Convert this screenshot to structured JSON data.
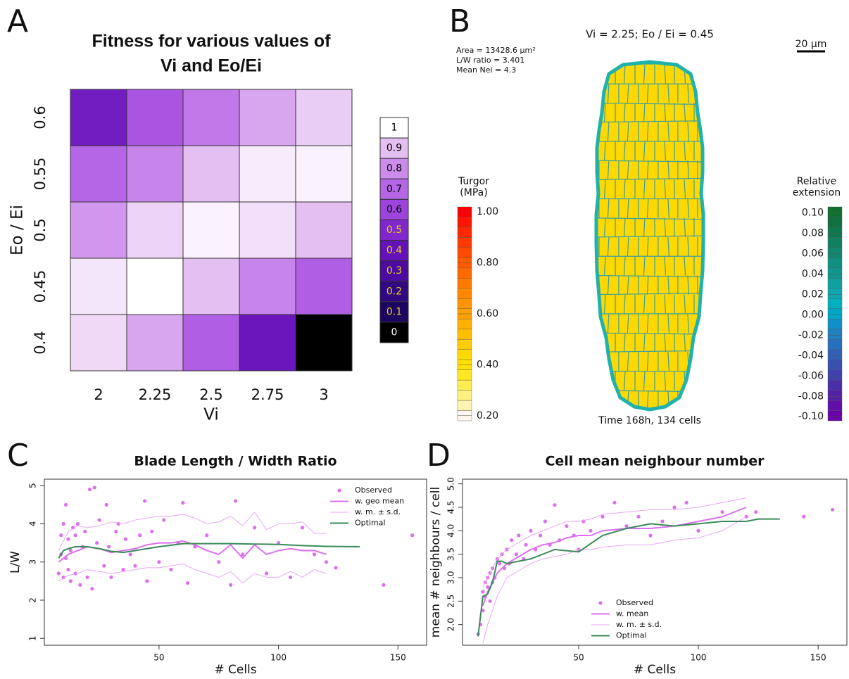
{
  "chart_data": [
    {
      "type": "heatmap",
      "panel_label": "A",
      "title": [
        "Fitness for various values of",
        "Vi and Eo/Ei"
      ],
      "xlabel": "Vi",
      "ylabel": "Eo / Ei",
      "categories": [
        "2",
        "2.25",
        "2.5",
        "2.75",
        "3"
      ],
      "y_categories": [
        "0.4",
        "0.45",
        "0.5",
        "0.55",
        "0.6"
      ],
      "values": [
        [
          0.94,
          0.85,
          0.68,
          0.42,
          0.0
        ],
        [
          0.96,
          1.0,
          0.9,
          0.78,
          0.68
        ],
        [
          0.82,
          0.93,
          0.98,
          0.95,
          0.9
        ],
        [
          0.7,
          0.78,
          0.9,
          0.97,
          0.98
        ],
        [
          0.45,
          0.65,
          0.75,
          0.85,
          0.92
        ]
      ],
      "legend_levels": [
        1,
        0.9,
        0.8,
        0.7,
        0.6,
        0.5,
        0.4,
        0.3,
        0.2,
        0.1,
        0
      ],
      "legend_colors": [
        "#ffffff",
        "#e4c0f2",
        "#cc8cec",
        "#b566e6",
        "#9c44dc",
        "#8028cc",
        "#6412b8",
        "#4c0aa0",
        "#320882",
        "#1c0560",
        "#000000"
      ],
      "legend_text_colors": [
        "#000000",
        "#000000",
        "#000000",
        "#000000",
        "#000000",
        "#e8d020",
        "#e8d020",
        "#e8d020",
        "#e8d020",
        "#e8d020",
        "#ffffff"
      ]
    },
    {
      "type": "image",
      "panel_label": "B",
      "title": "Vi = 2.25; Eo / Ei = 0.45",
      "info": [
        "Area = 13428.6 µm²",
        "L/W ratio = 3.401",
        "Mean Nei = 4.3"
      ],
      "scale_bar": "20 µm",
      "caption": "Time 168h, 134 cells",
      "colorbars": [
        {
          "title": [
            "Turgor",
            "(MPa)"
          ],
          "lim": [
            0.18,
            1.02
          ],
          "ticks": [
            {
              "value": 1,
              "label": "1.00"
            },
            {
              "value": 0.8,
              "label": "0.80"
            },
            {
              "value": 0.6,
              "label": "0.60"
            },
            {
              "value": 0.4,
              "label": "0.40"
            },
            {
              "value": 0.2,
              "label": "0.20"
            }
          ],
          "colors": [
            "#fff8f0",
            "#fff5b0",
            "#fff080",
            "#ffec50",
            "#ffe820",
            "#ffe000",
            "#ffd800",
            "#ffcc00",
            "#ffbf00",
            "#ffb000",
            "#ffa000",
            "#ff9400",
            "#ff8800",
            "#ff7a00",
            "#ff6a00",
            "#ff5a00",
            "#ff4a00",
            "#ff3a00",
            "#ff2800",
            "#ff1400",
            "#ff0000"
          ]
        },
        {
          "title": [
            "Relative",
            "extension"
          ],
          "lim": [
            -0.104,
            0.106
          ],
          "ticks": [
            {
              "value": 0.1,
              "label": "0.10"
            },
            {
              "value": 0.08,
              "label": "0.08"
            },
            {
              "value": 0.06,
              "label": "0.06"
            },
            {
              "value": 0.04,
              "label": "0.04"
            },
            {
              "value": 0.02,
              "label": "0.02"
            },
            {
              "value": 0,
              "label": "0.00"
            },
            {
              "value": -0.02,
              "label": "-0.02"
            },
            {
              "value": -0.04,
              "label": "-0.04"
            },
            {
              "value": -0.06,
              "label": "-0.06"
            },
            {
              "value": -0.08,
              "label": "-0.08"
            },
            {
              "value": -0.1,
              "label": "-0.10"
            }
          ],
          "colors": [
            "#6a00a8",
            "#6010a8",
            "#5520a8",
            "#4a30a8",
            "#4040b0",
            "#3850b0",
            "#3060b8",
            "#2870c0",
            "#2080c0",
            "#1090c8",
            "#00a8c8",
            "#00b0c0",
            "#10a8b0",
            "#10a0a0",
            "#109890",
            "#109080",
            "#108870",
            "#108060",
            "#107850",
            "#107040",
            "#107030"
          ]
        }
      ]
    },
    {
      "type": "scatter",
      "panel_label": "C",
      "title": "Blade Length / Width Ratio",
      "xlabel": "# Cells",
      "ylabel": "L/W",
      "xlim": [
        2,
        162
      ],
      "ylim": [
        0.82,
        5.17
      ],
      "xticks": [
        50,
        100,
        150
      ],
      "yticks": [
        1,
        2,
        3,
        4,
        5
      ],
      "legend": "top-right",
      "series": [
        {
          "name": "Observed",
          "style": "points",
          "color": "#dc6ff0",
          "x": [
            8,
            9,
            9,
            10,
            10,
            11,
            11,
            12,
            12,
            13,
            13,
            14,
            15,
            15,
            16,
            17,
            18,
            19,
            20,
            21,
            22,
            23,
            24,
            25,
            27,
            28,
            29,
            30,
            32,
            33,
            35,
            36,
            38,
            40,
            42,
            44,
            45,
            47,
            50,
            52,
            55,
            58,
            60,
            62,
            65,
            70,
            75,
            80,
            82,
            85,
            90,
            95,
            100,
            105,
            110,
            115,
            120,
            124,
            144,
            156
          ],
          "values": [
            2.7,
            3.2,
            3.7,
            2.6,
            4.0,
            3.1,
            4.5,
            2.8,
            3.6,
            3.3,
            2.5,
            3.9,
            2.7,
            3.7,
            4.0,
            2.4,
            3.4,
            3.8,
            2.6,
            4.9,
            2.3,
            4.95,
            3.5,
            4.1,
            2.9,
            4.5,
            3.4,
            2.6,
            3.8,
            4.0,
            2.8,
            3.6,
            3.2,
            2.9,
            3.7,
            4.6,
            2.5,
            3.8,
            3.0,
            4.1,
            2.8,
            3.5,
            4.55,
            2.45,
            3.4,
            3.7,
            3.0,
            2.4,
            4.6,
            3.2,
            3.9,
            2.7,
            3.5,
            2.6,
            3.9,
            3.2,
            3.0,
            2.85,
            2.4,
            3.7
          ]
        },
        {
          "name": "w. geo mean",
          "style": "line",
          "width": 2,
          "color": "#dc6ff0",
          "x": [
            8,
            12,
            16,
            20,
            25,
            30,
            35,
            40,
            45,
            50,
            55,
            60,
            65,
            70,
            75,
            80,
            85,
            90,
            95,
            100,
            105,
            110,
            115,
            120
          ],
          "values": [
            3.0,
            3.2,
            3.3,
            3.4,
            3.35,
            3.25,
            3.3,
            3.35,
            3.45,
            3.5,
            3.5,
            3.55,
            3.45,
            3.3,
            3.2,
            3.45,
            3.1,
            3.45,
            3.2,
            3.3,
            3.35,
            3.3,
            3.3,
            3.2
          ]
        },
        {
          "name": "w. m. ± s.d.",
          "style": "band",
          "width": 1,
          "color": "#e9a6f4",
          "x": [
            8,
            12,
            16,
            20,
            25,
            30,
            35,
            40,
            45,
            50,
            55,
            60,
            65,
            70,
            75,
            80,
            85,
            90,
            95,
            100,
            105,
            110,
            115,
            120
          ],
          "values": [
            3.3,
            3.8,
            3.95,
            3.9,
            3.95,
            4.05,
            4.0,
            4.1,
            4.15,
            4.2,
            4.2,
            4.25,
            4.15,
            4.0,
            4.05,
            4.2,
            3.95,
            4.3,
            3.85,
            4.0,
            4.0,
            4.05,
            3.75,
            3.75
          ],
          "lower": [
            2.5,
            2.65,
            2.7,
            2.8,
            2.75,
            2.7,
            2.75,
            2.8,
            2.85,
            2.85,
            2.9,
            2.95,
            2.8,
            2.7,
            2.6,
            2.75,
            2.45,
            2.7,
            2.6,
            2.6,
            2.75,
            2.6,
            2.8,
            2.7
          ]
        },
        {
          "name": "Optimal",
          "style": "line",
          "width": 2,
          "color": "#3a8a5a",
          "x": [
            8,
            10,
            12,
            15,
            20,
            25,
            30,
            35,
            40,
            50,
            60,
            70,
            80,
            90,
            100,
            110,
            120,
            134
          ],
          "values": [
            3.1,
            3.3,
            3.35,
            3.4,
            3.4,
            3.35,
            3.28,
            3.25,
            3.3,
            3.4,
            3.48,
            3.48,
            3.48,
            3.47,
            3.46,
            3.43,
            3.41,
            3.4
          ]
        }
      ]
    },
    {
      "type": "scatter",
      "panel_label": "D",
      "title": "Cell mean neighbour number",
      "xlabel": "# Cells",
      "ylabel": "mean # neighbours / cell",
      "xlim": [
        1.5,
        162
      ],
      "ylim": [
        1.56,
        5.1
      ],
      "xticks": [
        50,
        100,
        150
      ],
      "yticks": [
        {
          "value": 2,
          "label": "2.0"
        },
        2.5,
        {
          "value": 3,
          "label": "3.0"
        },
        3.5,
        {
          "value": 4,
          "label": "4.0"
        },
        4.5,
        {
          "value": 5,
          "label": "5.0"
        }
      ],
      "legend": "bottom-center",
      "series": [
        {
          "name": "Observed",
          "style": "points",
          "color": "#dc6ff0",
          "x": [
            8,
            9,
            10,
            10,
            11,
            11,
            12,
            12,
            13,
            13,
            14,
            14,
            15,
            16,
            17,
            18,
            19,
            20,
            21,
            22,
            24,
            25,
            27,
            28,
            30,
            32,
            34,
            36,
            38,
            40,
            42,
            45,
            48,
            50,
            52,
            55,
            60,
            65,
            70,
            75,
            80,
            85,
            90,
            95,
            100,
            110,
            120,
            124,
            144,
            156
          ],
          "values": [
            1.8,
            2.0,
            2.3,
            2.7,
            2.6,
            2.9,
            2.8,
            3.0,
            2.5,
            3.1,
            2.9,
            3.2,
            3.0,
            3.4,
            3.3,
            3.5,
            3.2,
            3.6,
            3.3,
            3.8,
            3.5,
            3.9,
            3.4,
            3.7,
            4.0,
            3.6,
            3.9,
            4.2,
            3.7,
            4.55,
            3.8,
            4.1,
            3.9,
            3.6,
            4.2,
            4.0,
            4.3,
            4.6,
            4.1,
            4.3,
            3.9,
            4.2,
            4.5,
            4.6,
            4.0,
            4.4,
            4.3,
            4.4,
            4.3,
            4.45
          ]
        },
        {
          "name": "w. mean",
          "style": "line",
          "width": 2,
          "color": "#dc6ff0",
          "x": [
            10,
            12,
            14,
            16,
            18,
            20,
            25,
            30,
            35,
            40,
            45,
            50,
            55,
            60,
            70,
            80,
            90,
            100,
            110,
            120
          ],
          "values": [
            2.4,
            2.7,
            2.9,
            3.1,
            3.2,
            3.3,
            3.45,
            3.6,
            3.7,
            3.75,
            3.85,
            3.9,
            3.9,
            4.0,
            4.05,
            4.05,
            4.1,
            4.2,
            4.3,
            4.5
          ]
        },
        {
          "name": "w. m. ± s.d.",
          "style": "band",
          "width": 1,
          "color": "#e9a6f4",
          "x": [
            10,
            12,
            14,
            16,
            18,
            20,
            25,
            30,
            35,
            40,
            45,
            50,
            55,
            60,
            70,
            80,
            90,
            100,
            110,
            120
          ],
          "values": [
            2.8,
            3.0,
            3.2,
            3.4,
            3.5,
            3.6,
            3.75,
            3.9,
            4.0,
            4.1,
            4.2,
            4.2,
            4.25,
            4.35,
            4.4,
            4.45,
            4.45,
            4.5,
            4.6,
            4.7
          ],
          "lower": [
            1.6,
            2.0,
            2.3,
            2.6,
            2.8,
            3.0,
            3.15,
            3.3,
            3.4,
            3.45,
            3.5,
            3.6,
            3.6,
            3.65,
            3.7,
            3.7,
            3.8,
            3.85,
            4.0,
            4.3
          ]
        },
        {
          "name": "Optimal",
          "style": "line",
          "width": 2,
          "color": "#3a8a5a",
          "x": [
            8,
            10,
            12,
            14,
            16,
            18,
            20,
            25,
            30,
            40,
            50,
            60,
            70,
            80,
            90,
            100,
            110,
            120,
            125,
            134
          ],
          "values": [
            1.75,
            2.6,
            2.65,
            2.9,
            3.35,
            3.35,
            3.3,
            3.35,
            3.4,
            3.6,
            3.55,
            3.9,
            4.05,
            4.15,
            4.1,
            4.15,
            4.2,
            4.2,
            4.25,
            4.25
          ]
        }
      ]
    }
  ]
}
